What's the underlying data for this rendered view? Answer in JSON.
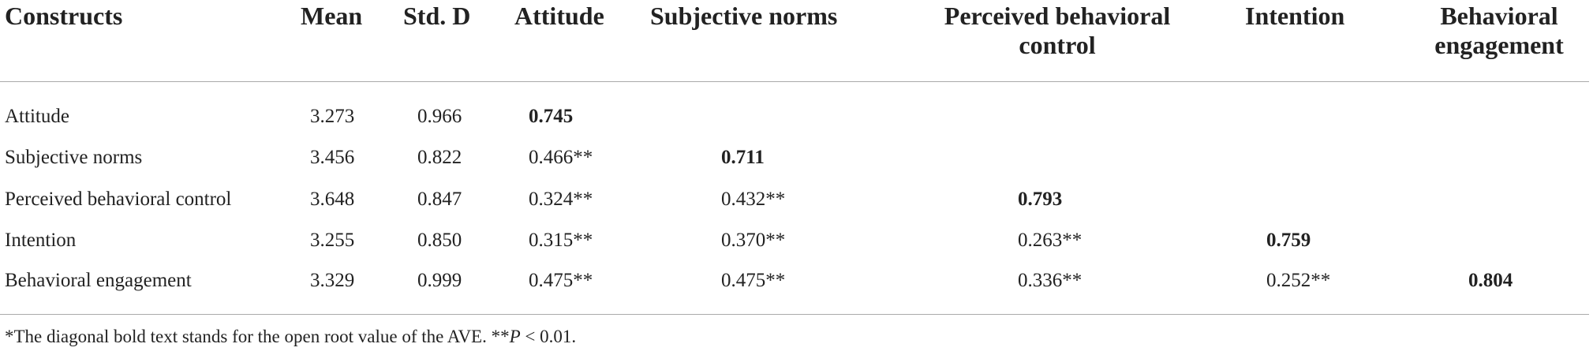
{
  "header": {
    "columns": [
      "Constructs",
      "Mean",
      "Std. D",
      "Attitude",
      "Subjective norms",
      "Perceived behavioral control",
      "Intention",
      "Behavioral engagement"
    ]
  },
  "table": {
    "rows": [
      {
        "label": "Attitude",
        "mean": "3.273",
        "sd": "0.966",
        "correlations": [
          "0.745"
        ]
      },
      {
        "label": "Subjective norms",
        "mean": "3.456",
        "sd": "0.822",
        "correlations": [
          "0.466**",
          "0.711"
        ]
      },
      {
        "label": "Perceived behavioral control",
        "mean": "3.648",
        "sd": "0.847",
        "correlations": [
          "0.324**",
          "0.432**",
          "0.793"
        ]
      },
      {
        "label": "Intention",
        "mean": "3.255",
        "sd": "0.850",
        "correlations": [
          "0.315**",
          "0.370**",
          "0.263**",
          "0.759"
        ]
      },
      {
        "label": "Behavioral engagement",
        "mean": "3.329",
        "sd": "0.999",
        "correlations": [
          "0.475**",
          "0.475**",
          "0.336**",
          "0.252**",
          "0.804"
        ]
      }
    ]
  },
  "footnote": {
    "parts": [
      "*The diagonal bold text stands for the open root value of the AVE. **",
      "P",
      " < 0.01."
    ]
  }
}
